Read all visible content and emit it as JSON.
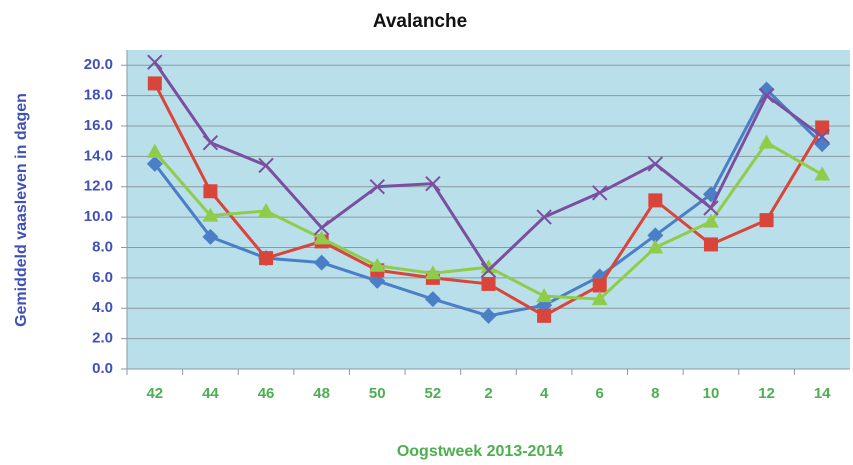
{
  "chart_data": {
    "type": "line",
    "title": "Avalanche",
    "x_label": "Oogstweek 2013-2014",
    "y_label": "Gemiddeld vaasleven in dagen",
    "categories": [
      "42",
      "44",
      "46",
      "48",
      "50",
      "52",
      "2",
      "4",
      "6",
      "8",
      "10",
      "12",
      "14"
    ],
    "series": [
      {
        "color": "#4a7fc8",
        "marker": "diamond",
        "values": [
          13.5,
          8.7,
          7.3,
          7.0,
          5.8,
          4.6,
          3.5,
          4.2,
          6.1,
          8.8,
          11.5,
          18.4,
          14.8
        ]
      },
      {
        "color": "#d9453a",
        "marker": "square",
        "values": [
          18.8,
          11.7,
          7.3,
          8.4,
          6.5,
          6.0,
          5.6,
          3.5,
          5.5,
          11.1,
          8.2,
          9.8,
          15.9
        ]
      },
      {
        "color": "#8fcc4a",
        "marker": "triangle",
        "values": [
          14.3,
          10.1,
          10.4,
          8.6,
          6.8,
          6.3,
          6.7,
          4.8,
          4.6,
          8.0,
          9.7,
          14.9,
          12.8
        ]
      },
      {
        "color": "#7b4fa0",
        "marker": "x",
        "values": [
          20.2,
          14.9,
          13.4,
          9.3,
          12.0,
          12.2,
          6.5,
          10.0,
          11.6,
          13.5,
          10.6,
          18.0,
          15.3
        ]
      }
    ],
    "ylim": [
      0,
      21
    ],
    "yticks": [
      {
        "value": 0,
        "label": "0.0"
      },
      {
        "value": 2,
        "label": "2.0"
      },
      {
        "value": 4,
        "label": "4.0"
      },
      {
        "value": 6,
        "label": "6.0"
      },
      {
        "value": 8,
        "label": "8.0"
      },
      {
        "value": 10,
        "label": "10.0"
      },
      {
        "value": 12,
        "label": "12.0"
      },
      {
        "value": 14,
        "label": "14.0"
      },
      {
        "value": 16,
        "label": "16.0"
      },
      {
        "value": 18,
        "label": "18.0"
      },
      {
        "value": 20,
        "label": "20.0"
      }
    ],
    "grid": true
  }
}
